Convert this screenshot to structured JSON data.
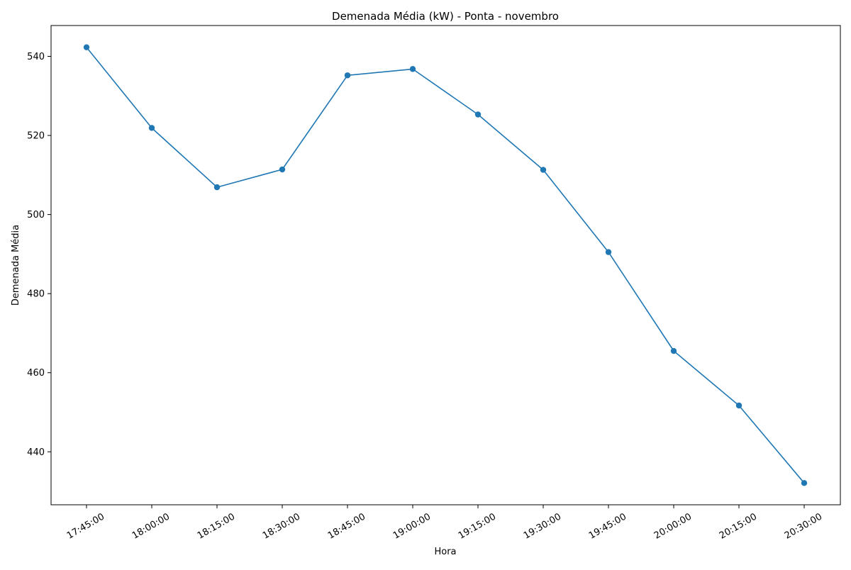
{
  "chart_data": {
    "type": "line",
    "title": "Demenada Média (kW) - Ponta - novembro",
    "xlabel": "Hora",
    "ylabel": "Demenada Média",
    "categories": [
      "17:45:00",
      "18:00:00",
      "18:15:00",
      "18:30:00",
      "18:45:00",
      "19:00:00",
      "19:15:00",
      "19:30:00",
      "19:45:00",
      "20:00:00",
      "20:15:00",
      "20:30:00"
    ],
    "series": [
      {
        "values": [
          542.3,
          521.9,
          506.9,
          511.4,
          535.2,
          536.8,
          525.3,
          511.3,
          490.5,
          465.5,
          451.7,
          432.1
        ],
        "color": "#1f77b4",
        "marker": "circle"
      }
    ],
    "yticks": [
      440,
      460,
      480,
      500,
      520,
      540
    ],
    "ylim": [
      426.6,
      547.8
    ],
    "grid": false,
    "legend": "none"
  }
}
